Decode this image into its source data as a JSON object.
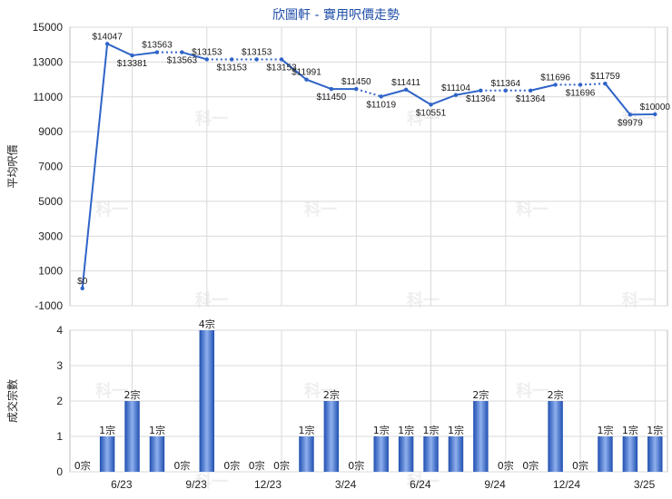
{
  "title": "欣圖軒 - 實用呎價走勢",
  "colors": {
    "line": "#2f64c8",
    "bar": "#3a6fd0",
    "grid": "#d9d9d9"
  },
  "watermark": "科一",
  "chart_data": [
    {
      "type": "line",
      "ylabel": "平均呎價",
      "ylim": [
        -1000,
        15000
      ],
      "yticks": [
        -1000,
        1000,
        3000,
        5000,
        7000,
        9000,
        11000,
        13000,
        15000
      ],
      "x_tick_labels": [
        "6/23",
        "9/23",
        "12/23",
        "3/24",
        "6/24",
        "9/24",
        "12/24",
        "3/25"
      ],
      "series": [
        {
          "values": [
            0,
            14047,
            13381,
            13563,
            13563,
            13153,
            13153,
            13153,
            13153,
            11991,
            11450,
            11450,
            11019,
            11411,
            10551,
            11104,
            11364,
            11364,
            11364,
            11696,
            11696,
            11759,
            9979,
            10000
          ],
          "labels": [
            "$0",
            "$14047",
            "$13381",
            "$13563",
            "$13563",
            "$13153",
            "$13153",
            "$13153",
            "$13153",
            "$11991",
            "$11450",
            "$11450",
            "$11019",
            "$11411",
            "$10551",
            "$11104",
            "$11364",
            "$11364",
            "$11364",
            "$11696",
            "$11696",
            "$11759",
            "$9979",
            "$10000"
          ],
          "dotted_segments": [
            3,
            5,
            6,
            7,
            11,
            16,
            17,
            19,
            20
          ]
        }
      ]
    },
    {
      "type": "bar",
      "ylabel": "成交宗數",
      "ylim": [
        0,
        4
      ],
      "yticks": [
        0,
        1,
        2,
        3,
        4
      ],
      "x_tick_labels": [
        "6/23",
        "9/23",
        "12/23",
        "3/24",
        "6/24",
        "9/24",
        "12/24",
        "3/25"
      ],
      "values": [
        0,
        1,
        2,
        1,
        0,
        4,
        0,
        0,
        0,
        1,
        2,
        0,
        1,
        1,
        1,
        1,
        2,
        0,
        0,
        2,
        0,
        1,
        1,
        1
      ],
      "labels": [
        "0宗",
        "1宗",
        "2宗",
        "1宗",
        "0宗",
        "4宗",
        "0宗",
        "0宗",
        "0宗",
        "1宗",
        "2宗",
        "0宗",
        "1宗",
        "1宗",
        "1宗",
        "1宗",
        "2宗",
        "0宗",
        "0宗",
        "2宗",
        "0宗",
        "1宗",
        "1宗",
        "1宗"
      ]
    }
  ]
}
